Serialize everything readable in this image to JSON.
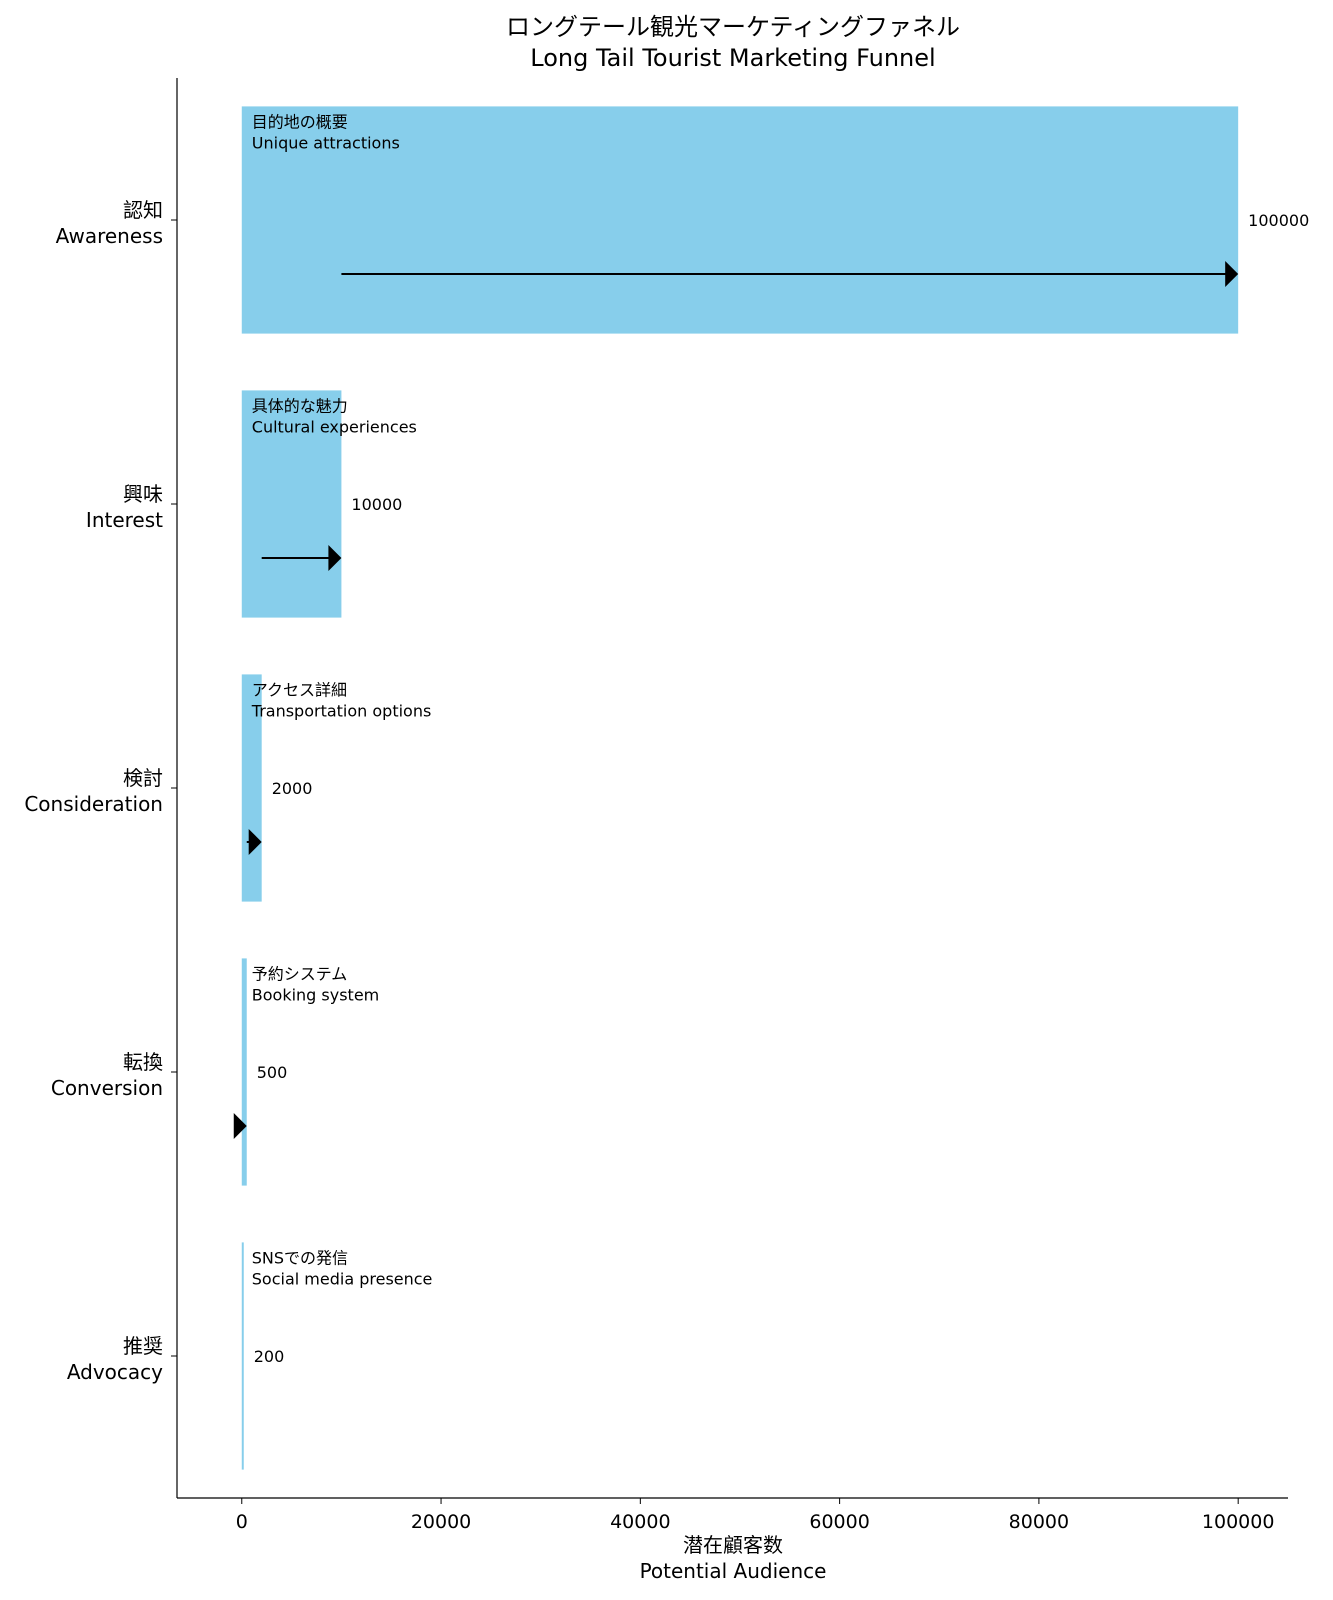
{
  "chart_data": {
    "type": "bar",
    "orientation": "horizontal",
    "title": [
      "ロングテール観光マーケティングファネル",
      "Long Tail Tourist Marketing Funnel"
    ],
    "xlabel": [
      "潜在顧客数",
      "Potential Audience"
    ],
    "xlim": [
      -6500,
      105000
    ],
    "xticks": [
      0,
      20000,
      40000,
      60000,
      80000,
      100000
    ],
    "grid": false,
    "bar_color": "#87CEEB",
    "categories": [
      {
        "jp": "認知",
        "en": "Awareness"
      },
      {
        "jp": "興味",
        "en": "Interest"
      },
      {
        "jp": "検討",
        "en": "Consideration"
      },
      {
        "jp": "転換",
        "en": "Conversion"
      },
      {
        "jp": "推奨",
        "en": "Advocacy"
      }
    ],
    "values": [
      100000,
      10000,
      2000,
      500,
      200
    ],
    "value_labels": [
      "100000",
      "10000",
      "2000",
      "500",
      "200"
    ],
    "annotations": [
      {
        "jp": "目的地の概要",
        "en": "Unique attractions"
      },
      {
        "jp": "具体的な魅力",
        "en": "Cultural experiences"
      },
      {
        "jp": "アクセス詳細",
        "en": "Transportation options"
      },
      {
        "jp": "予約システム",
        "en": "Booking system"
      },
      {
        "jp": "SNSでの発信",
        "en": "Social media presence"
      }
    ],
    "arrows": [
      {
        "from": 10000,
        "to": 100000
      },
      {
        "from": 2000,
        "to": 10000
      },
      {
        "from": 500,
        "to": 2000
      },
      {
        "from": 200,
        "to": 500
      }
    ]
  }
}
